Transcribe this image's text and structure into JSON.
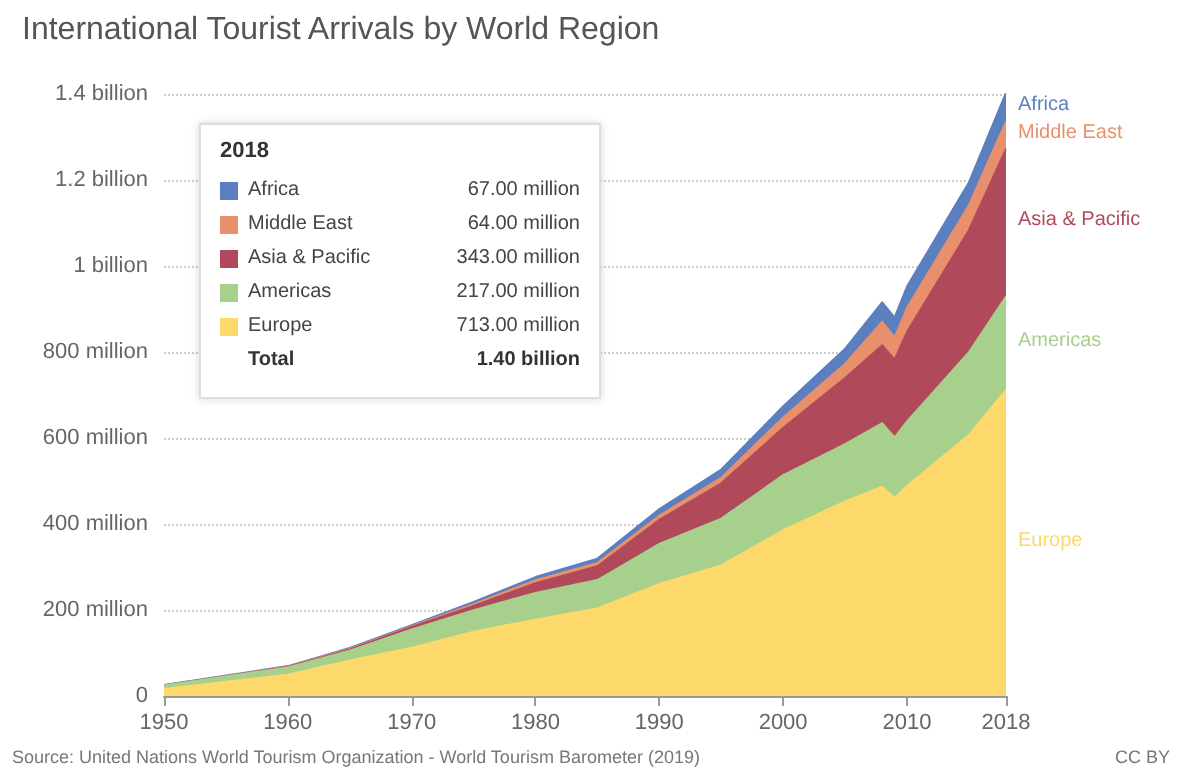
{
  "chart_data": {
    "type": "area",
    "stacked": true,
    "title": "International Tourist Arrivals by World Region",
    "x": [
      1950,
      1960,
      1965,
      1970,
      1975,
      1980,
      1985,
      1990,
      1995,
      2000,
      2005,
      2008,
      2009,
      2010,
      2015,
      2018
    ],
    "series": [
      {
        "name": "Europe",
        "color": "#fcd96a",
        "values": [
          17000000,
          50000000,
          83000000,
          113000000,
          150000000,
          178000000,
          204000000,
          261000000,
          304000000,
          386000000,
          453000000,
          487000000,
          461000000,
          489000000,
          607000000,
          713000000
        ]
      },
      {
        "name": "Americas",
        "color": "#a8d08d",
        "values": [
          8000000,
          17000000,
          23000000,
          42000000,
          50000000,
          62000000,
          66000000,
          93000000,
          109000000,
          128000000,
          133000000,
          148000000,
          141000000,
          150000000,
          193000000,
          217000000
        ]
      },
      {
        "name": "Asia & Pacific",
        "color": "#b04a5a",
        "values": [
          0,
          1000000,
          2000000,
          6000000,
          10000000,
          23000000,
          32000000,
          56000000,
          82000000,
          110000000,
          154000000,
          181000000,
          181000000,
          208000000,
          284000000,
          343000000
        ]
      },
      {
        "name": "Middle East",
        "color": "#e8906c",
        "values": [
          0,
          1000000,
          2000000,
          2000000,
          4000000,
          7000000,
          8000000,
          10000000,
          13000000,
          24000000,
          33000000,
          55000000,
          52000000,
          56000000,
          58000000,
          64000000
        ]
      },
      {
        "name": "Africa",
        "color": "#5b7fbf",
        "values": [
          1000000,
          1000000,
          2000000,
          2000000,
          5000000,
          7000000,
          10000000,
          15000000,
          19000000,
          26000000,
          35000000,
          45000000,
          46000000,
          50000000,
          53000000,
          67000000
        ]
      }
    ],
    "xlim": [
      1950,
      2018
    ],
    "xticks": [
      1950,
      1960,
      1970,
      1980,
      1990,
      2000,
      2010,
      2018
    ],
    "ylim": [
      0,
      1400000000
    ],
    "yticks": [
      0,
      {
        "value": 200000000,
        "label": "200 million"
      },
      {
        "value": 400000000,
        "label": "400 million"
      },
      {
        "value": 600000000,
        "label": "600 million"
      },
      {
        "value": 800000000,
        "label": "800 million"
      },
      {
        "value": 1000000000,
        "label": "1 billion"
      },
      {
        "value": 1200000000,
        "label": "1.2 billion"
      },
      {
        "value": 1400000000,
        "label": "1.4 billion"
      }
    ],
    "grid": "y",
    "legend": "top left",
    "annotations": [
      "Source: United Nations World Tourism Organization - World Tourism Barometer (2019)",
      "CC BY",
      "2018",
      "713.00 million",
      "217.00 million",
      "343.00 million",
      "64.00 million",
      "67.00 million",
      "Total",
      "1.40 billion"
    ]
  }
}
